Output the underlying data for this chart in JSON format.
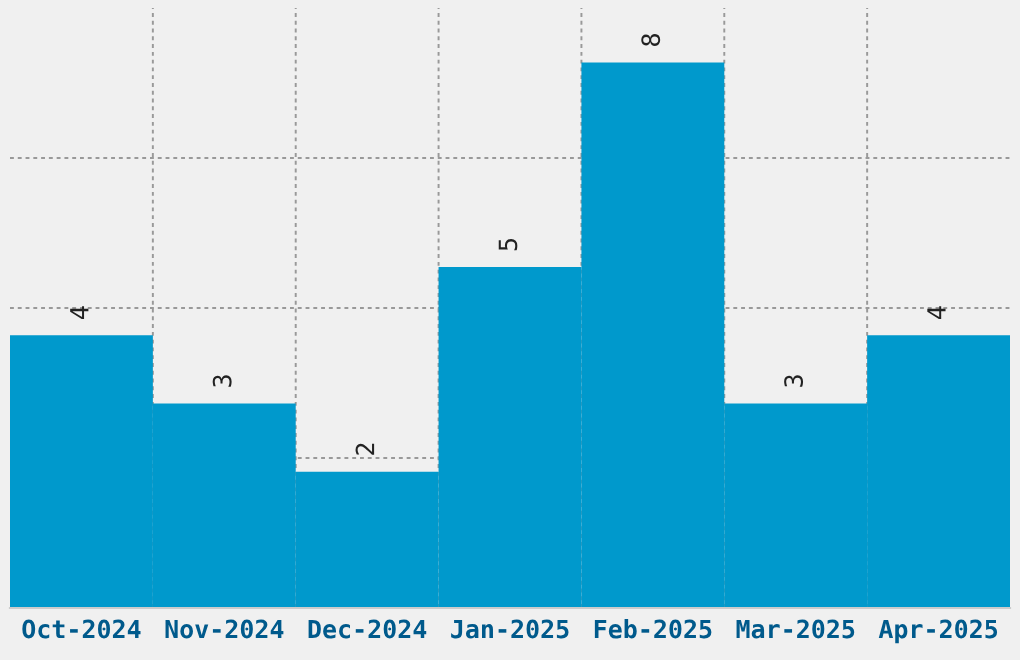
{
  "chart_data": {
    "type": "bar",
    "categories": [
      "Oct-2024",
      "Nov-2024",
      "Dec-2024",
      "Jan-2025",
      "Feb-2025",
      "Mar-2025",
      "Apr-2025"
    ],
    "values": [
      4,
      3,
      2,
      5,
      8,
      3,
      4
    ],
    "color": "#0099cc",
    "data_labels": true,
    "ylim": [
      0,
      8.8
    ],
    "yticks": [
      {
        "value": 2.2,
        "label": null
      },
      {
        "value": 4.4,
        "label": null
      },
      {
        "value": 6.6,
        "label": null
      }
    ],
    "grid": true,
    "tick_labels": "x"
  }
}
